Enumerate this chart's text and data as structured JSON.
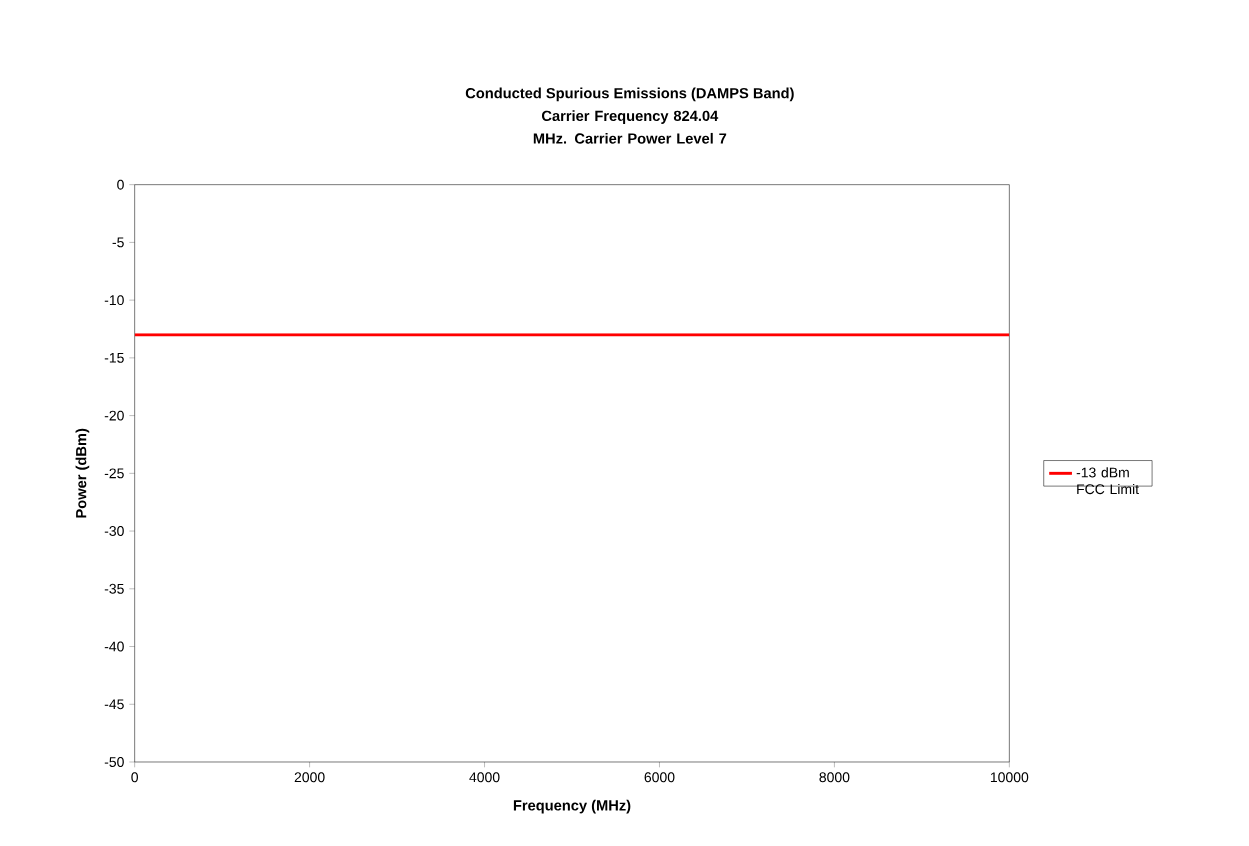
{
  "chart_data": {
    "type": "line",
    "title": "Conducted Spurious Emissions (DAMPS Band)",
    "subtitle": "Carrier Frequency 824.04 MHz. Carrier Power Level 7",
    "xlabel": "Frequency (MHz)",
    "ylabel": "Power (dBm)",
    "x": [
      0,
      10000
    ],
    "series": [
      {
        "name": "-13 dBm FCC Limit",
        "color": "#ff0000",
        "values": [
          -13,
          -13
        ]
      }
    ],
    "xlim": [
      0,
      10000
    ],
    "ylim": [
      -50,
      0
    ],
    "xticks": [
      0,
      2000,
      4000,
      6000,
      8000,
      10000
    ],
    "yticks": [
      -50,
      -45,
      -40,
      -35,
      -30,
      -25,
      -20,
      -15,
      -10,
      -5,
      0
    ],
    "grid": false,
    "legend": "right",
    "marker": "none",
    "line_style": "solid"
  }
}
